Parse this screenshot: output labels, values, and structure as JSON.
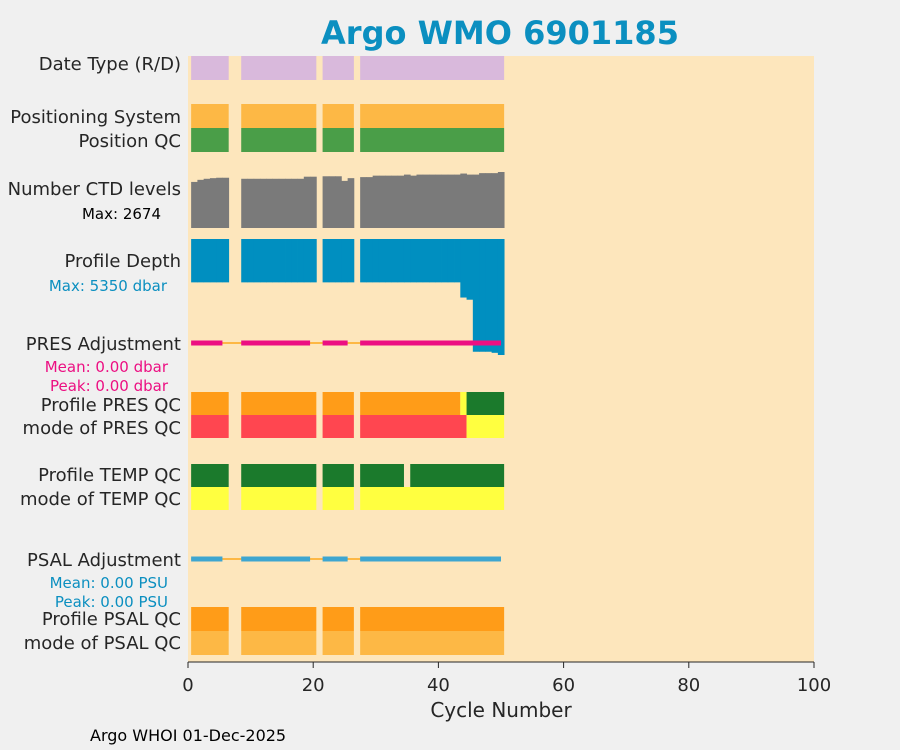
{
  "chart_data": {
    "type": "timeline",
    "title": "Argo WMO 6901185",
    "xlabel": "Cycle Number",
    "xlim": [
      0,
      100
    ],
    "xticks": [
      0,
      20,
      40,
      60,
      80,
      100
    ],
    "footer": "Argo WHOI 01-Dec-2025",
    "colors": {
      "background": "#fde6bc",
      "title": "#0b8fc0",
      "date_type": "#d9b9dc",
      "positioning": "#fdb845",
      "position_qc": "#4a9e48",
      "ctd": "#7a7a7a",
      "depth": "#008fc0",
      "pres_adj": "#ec0f82",
      "pres_adj_gap": "#fdb845",
      "psal_adj": "#3ea6d0",
      "psal_adj_gap": "#fdb845",
      "qc_orange": "#ff9c18",
      "qc_red": "#ff4650",
      "qc_green": "#1b7a2c",
      "qc_yellow": "#ffff40",
      "psal_mode": "#fdb845"
    },
    "segments": [
      [
        0.5,
        6.5
      ],
      [
        8.5,
        20.5
      ],
      [
        21.5,
        26.5
      ],
      [
        27.5,
        50.5
      ]
    ],
    "rows": {
      "date_type": {
        "label": "Date Type (R/D)"
      },
      "positioning": {
        "label": "Positioning System"
      },
      "position_qc": {
        "label": "Position QC"
      },
      "ctd": {
        "label": "Number CTD levels",
        "max_label": "Max: 2674",
        "max": 2674
      },
      "depth": {
        "label": "Profile Depth",
        "max_label": "Max: 5350 dbar",
        "max": 5350
      },
      "pres_adj": {
        "label": "PRES Adjustment",
        "mean_label": "Mean: 0.00 dbar",
        "peak_label": "Peak: 0.00 dbar"
      },
      "pres_qc": {
        "label": "Profile PRES QC"
      },
      "pres_mode": {
        "label": "mode of PRES QC"
      },
      "temp_qc": {
        "label": "Profile TEMP QC"
      },
      "temp_mode": {
        "label": "mode of TEMP QC"
      },
      "psal_adj": {
        "label": "PSAL Adjustment",
        "mean_label": "Mean: 0.00 PSU",
        "peak_label": "Peak: 0.00 PSU"
      },
      "psal_qc": {
        "label": "Profile PSAL QC"
      },
      "psal_mode": {
        "label": "mode of PSAL QC"
      }
    },
    "ctd_levels": [
      [
        1,
        2200
      ],
      [
        2,
        2300
      ],
      [
        3,
        2350
      ],
      [
        4,
        2380
      ],
      [
        5,
        2400
      ],
      [
        6,
        2400
      ],
      [
        9,
        2350
      ],
      [
        10,
        2350
      ],
      [
        11,
        2350
      ],
      [
        12,
        2350
      ],
      [
        13,
        2350
      ],
      [
        14,
        2350
      ],
      [
        15,
        2350
      ],
      [
        16,
        2350
      ],
      [
        17,
        2350
      ],
      [
        18,
        2350
      ],
      [
        19,
        2450
      ],
      [
        20,
        2450
      ],
      [
        22,
        2470
      ],
      [
        23,
        2470
      ],
      [
        24,
        2470
      ],
      [
        25,
        2250
      ],
      [
        26,
        2380
      ],
      [
        28,
        2430
      ],
      [
        29,
        2430
      ],
      [
        30,
        2500
      ],
      [
        31,
        2500
      ],
      [
        32,
        2500
      ],
      [
        33,
        2500
      ],
      [
        34,
        2500
      ],
      [
        35,
        2550
      ],
      [
        36,
        2500
      ],
      [
        37,
        2550
      ],
      [
        38,
        2550
      ],
      [
        39,
        2550
      ],
      [
        40,
        2550
      ],
      [
        41,
        2550
      ],
      [
        42,
        2550
      ],
      [
        43,
        2550
      ],
      [
        44,
        2600
      ],
      [
        45,
        2550
      ],
      [
        46,
        2550
      ],
      [
        47,
        2620
      ],
      [
        48,
        2620
      ],
      [
        49,
        2620
      ],
      [
        50,
        2674
      ]
    ],
    "profile_depth": [
      [
        1,
        2000
      ],
      [
        2,
        2000
      ],
      [
        3,
        2000
      ],
      [
        4,
        2000
      ],
      [
        5,
        2000
      ],
      [
        6,
        2000
      ],
      [
        9,
        2000
      ],
      [
        10,
        2000
      ],
      [
        11,
        2000
      ],
      [
        12,
        2000
      ],
      [
        13,
        2000
      ],
      [
        14,
        2000
      ],
      [
        15,
        2000
      ],
      [
        16,
        2000
      ],
      [
        17,
        2000
      ],
      [
        18,
        2000
      ],
      [
        19,
        2000
      ],
      [
        20,
        2000
      ],
      [
        22,
        2000
      ],
      [
        23,
        2000
      ],
      [
        24,
        2000
      ],
      [
        25,
        2000
      ],
      [
        26,
        2000
      ],
      [
        28,
        2000
      ],
      [
        29,
        2000
      ],
      [
        30,
        2000
      ],
      [
        31,
        2000
      ],
      [
        32,
        2000
      ],
      [
        33,
        2000
      ],
      [
        34,
        2000
      ],
      [
        35,
        2000
      ],
      [
        36,
        2000
      ],
      [
        37,
        2000
      ],
      [
        38,
        2000
      ],
      [
        39,
        2000
      ],
      [
        40,
        2000
      ],
      [
        41,
        2000
      ],
      [
        42,
        2000
      ],
      [
        43,
        2000
      ],
      [
        44,
        2700
      ],
      [
        45,
        2800
      ],
      [
        46,
        5200
      ],
      [
        47,
        5200
      ],
      [
        48,
        5200
      ],
      [
        49,
        5250
      ],
      [
        50,
        5350
      ]
    ],
    "pres_adjustment_segments": [
      [
        0.5,
        5.5
      ],
      [
        8.5,
        19.5
      ],
      [
        21.5,
        25.5
      ],
      [
        27.5,
        50
      ]
    ],
    "psal_adjustment_segments": [
      [
        0.5,
        5.5
      ],
      [
        8.5,
        19.5
      ],
      [
        21.5,
        25.5
      ],
      [
        27.5,
        50
      ]
    ],
    "pres_qc": [
      [
        0.5,
        6.5,
        "qc_orange"
      ],
      [
        8.5,
        20.5,
        "qc_orange"
      ],
      [
        21.5,
        26.5,
        "qc_orange"
      ],
      [
        27.5,
        43.5,
        "qc_orange"
      ],
      [
        43.5,
        44.5,
        "qc_yellow"
      ],
      [
        44.5,
        50.5,
        "qc_green"
      ]
    ],
    "pres_mode": [
      [
        0.5,
        6.5,
        "qc_red"
      ],
      [
        8.5,
        20.5,
        "qc_red"
      ],
      [
        21.5,
        26.5,
        "qc_red"
      ],
      [
        27.5,
        44.5,
        "qc_red"
      ],
      [
        44.5,
        50.5,
        "qc_yellow"
      ]
    ],
    "temp_qc": [
      [
        0.5,
        6.5,
        "qc_green"
      ],
      [
        8.5,
        20.5,
        "qc_green"
      ],
      [
        21.5,
        26.5,
        "qc_green"
      ],
      [
        27.5,
        34.5,
        "qc_green"
      ],
      [
        35.5,
        50.5,
        "qc_green"
      ]
    ],
    "temp_mode": [
      [
        0.5,
        6.5,
        "qc_yellow"
      ],
      [
        8.5,
        20.5,
        "qc_yellow"
      ],
      [
        21.5,
        26.5,
        "qc_yellow"
      ],
      [
        27.5,
        50.5,
        "qc_yellow"
      ]
    ],
    "psal_qc": [
      [
        0.5,
        6.5,
        "qc_orange"
      ],
      [
        8.5,
        20.5,
        "qc_orange"
      ],
      [
        21.5,
        26.5,
        "qc_orange"
      ],
      [
        27.5,
        50.5,
        "qc_orange"
      ]
    ],
    "psal_mode": [
      [
        0.5,
        6.5,
        "psal_mode"
      ],
      [
        8.5,
        20.5,
        "psal_mode"
      ],
      [
        21.5,
        26.5,
        "psal_mode"
      ],
      [
        27.5,
        50.5,
        "psal_mode"
      ]
    ]
  }
}
